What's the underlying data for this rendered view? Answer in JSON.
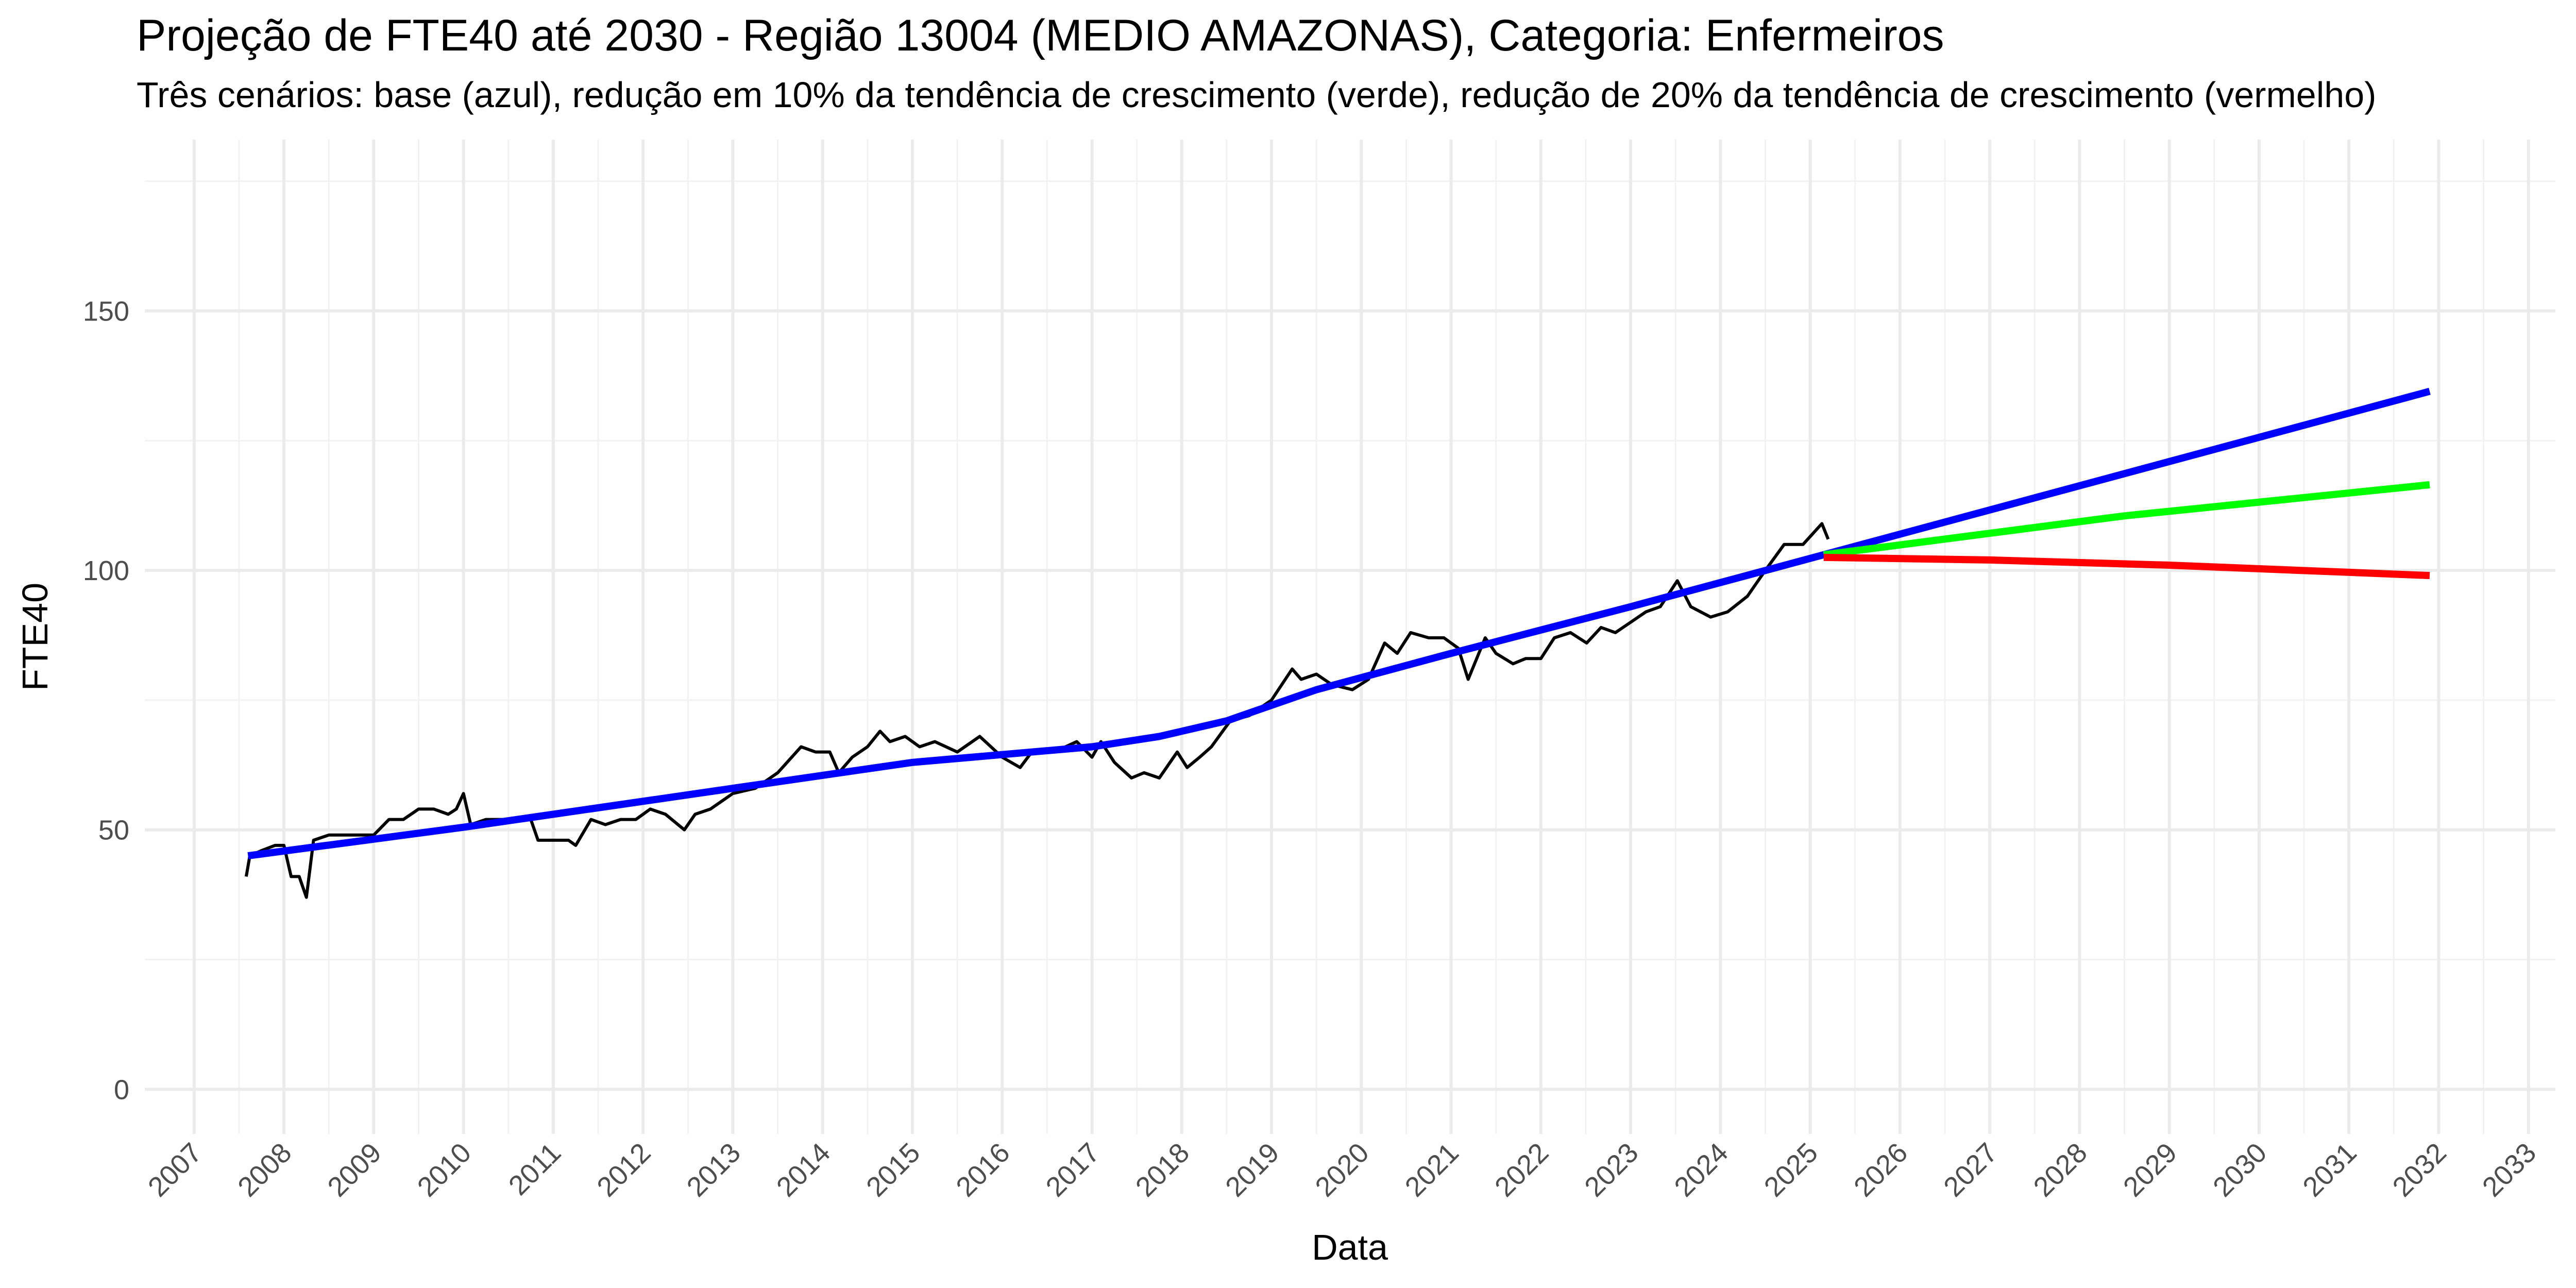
{
  "chart_data": {
    "type": "line",
    "title": "Projeção de FTE40 até 2030 - Região 13004 (MEDIO AMAZONAS), Categoria: Enfermeiros",
    "subtitle": "Três cenários: base (azul), redução em 10% da tendência de crescimento (verde), redução de 20% da tendência de crescimento (vermelho)",
    "x_label": "Data",
    "y_label": "FTE40",
    "xlim": [
      2006.45,
      2033.3
    ],
    "ylim": [
      -8.6,
      183
    ],
    "xticks": [
      2007,
      2008,
      2009,
      2010,
      2011,
      2012,
      2013,
      2014,
      2015,
      2016,
      2017,
      2018,
      2019,
      2020,
      2021,
      2022,
      2023,
      2024,
      2025,
      2026,
      2027,
      2028,
      2029,
      2030,
      2031,
      2032,
      2033
    ],
    "yticks": [
      0,
      50,
      100,
      150
    ],
    "grid": true,
    "series": [
      {
        "color": "#000000",
        "x": [
          2007.58,
          2007.62,
          2007.75,
          2007.9,
          2008.0,
          2008.08,
          2008.17,
          2008.25,
          2008.33,
          2008.5,
          2008.75,
          2009.0,
          2009.17,
          2009.33,
          2009.5,
          2009.67,
          2009.83,
          2009.92,
          2010.0,
          2010.08,
          2010.25,
          2010.5,
          2010.75,
          2010.83,
          2011.0,
          2011.17,
          2011.25,
          2011.42,
          2011.58,
          2011.75,
          2011.92,
          2012.08,
          2012.25,
          2012.46,
          2012.58,
          2012.75,
          2013.0,
          2013.25,
          2013.5,
          2013.76,
          2013.92,
          2014.08,
          2014.18,
          2014.33,
          2014.5,
          2014.64,
          2014.75,
          2014.92,
          2015.08,
          2015.25,
          2015.5,
          2015.75,
          2016.0,
          2016.2,
          2016.33,
          2016.58,
          2016.83,
          2017.0,
          2017.1,
          2017.25,
          2017.44,
          2017.58,
          2017.75,
          2017.95,
          2018.06,
          2018.2,
          2018.33,
          2018.54,
          2018.75,
          2019.0,
          2019.23,
          2019.33,
          2019.5,
          2019.67,
          2019.9,
          2020.08,
          2020.26,
          2020.4,
          2020.55,
          2020.75,
          2020.92,
          2021.08,
          2021.19,
          2021.38,
          2021.5,
          2021.69,
          2021.83,
          2022.0,
          2022.15,
          2022.33,
          2022.51,
          2022.67,
          2022.83,
          2023.0,
          2023.17,
          2023.33,
          2023.52,
          2023.67,
          2023.89,
          2024.08,
          2024.3,
          2024.5,
          2024.71,
          2024.92,
          2025.13,
          2025.2
        ],
        "values": [
          41,
          45,
          46,
          47,
          47,
          41,
          41,
          37,
          48,
          49,
          49,
          49,
          52,
          52,
          54,
          54,
          53,
          54,
          57,
          51,
          52,
          52,
          52,
          48,
          48,
          48,
          47,
          52,
          51,
          52,
          52,
          54,
          53,
          50,
          53,
          54,
          57,
          58,
          61,
          66,
          65,
          65,
          61,
          64,
          66,
          69,
          67,
          68,
          66,
          67,
          65,
          68,
          64,
          62,
          65,
          65,
          67,
          64,
          67,
          63,
          60,
          61,
          60,
          65,
          62,
          64,
          66,
          71,
          72,
          75,
          81,
          79,
          80,
          78,
          77,
          79,
          86,
          84,
          88,
          87,
          87,
          85,
          79,
          87,
          84,
          82,
          83,
          83,
          87,
          88,
          86,
          89,
          88,
          90,
          92,
          93,
          98,
          93,
          91,
          92,
          95,
          100,
          105,
          105,
          109,
          106
        ]
      },
      {
        "color": "#0000ff",
        "x": [
          2007.6,
          2010,
          2013,
          2015,
          2017,
          2017.75,
          2018.5,
          2019.5,
          2021,
          2023,
          2025.15,
          2031.9
        ],
        "values": [
          45,
          50.5,
          58,
          63,
          66,
          68,
          71,
          77,
          84,
          93,
          103,
          134.5
        ]
      },
      {
        "color": "#00ff00",
        "x": [
          2025.15,
          2028.5,
          2031.9
        ],
        "values": [
          103,
          110.5,
          116.5
        ]
      },
      {
        "color": "#ff0000",
        "x": [
          2025.15,
          2027,
          2029,
          2031.9
        ],
        "values": [
          102.5,
          102,
          101,
          99
        ]
      }
    ]
  }
}
